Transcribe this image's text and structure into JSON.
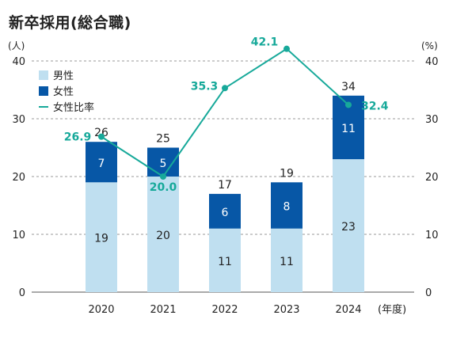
{
  "title": "新卒採用(総合職)",
  "chart_data": {
    "type": "bar",
    "title": "新卒採用(総合職)",
    "left_unit": "(人)",
    "right_unit": "(%)",
    "x_unit": "(年度)",
    "categories": [
      "2020",
      "2021",
      "2022",
      "2023",
      "2024"
    ],
    "left_ticks": [
      "0",
      "10",
      "20",
      "30",
      "40"
    ],
    "right_ticks": [
      "0",
      "10",
      "20",
      "30",
      "40"
    ],
    "ylim": [
      0,
      40
    ],
    "y2lim": [
      0,
      40
    ],
    "stacked": true,
    "grid": true,
    "legend_position": "top-left",
    "series": [
      {
        "name": "男性",
        "kind": "bar",
        "color": "#bfdff0",
        "text_color": "#222222",
        "values": [
          19,
          20,
          11,
          11,
          23
        ],
        "labels": [
          "19",
          "20",
          "11",
          "11",
          "23"
        ]
      },
      {
        "name": "女性",
        "kind": "bar",
        "color": "#0757a6",
        "text_color": "#ffffff",
        "values": [
          7,
          5,
          6,
          8,
          11
        ],
        "labels": [
          "7",
          "5",
          "6",
          "8",
          "11"
        ]
      },
      {
        "name": "女性比率",
        "kind": "line",
        "axis": "right",
        "color": "#17a99a",
        "values": [
          26.9,
          20.0,
          35.3,
          42.1,
          32.4
        ],
        "labels": [
          "26.9",
          "20.0",
          "35.3",
          "42.1",
          "32.4"
        ]
      }
    ],
    "totals": [
      "26",
      "25",
      "17",
      "19",
      "34"
    ]
  }
}
